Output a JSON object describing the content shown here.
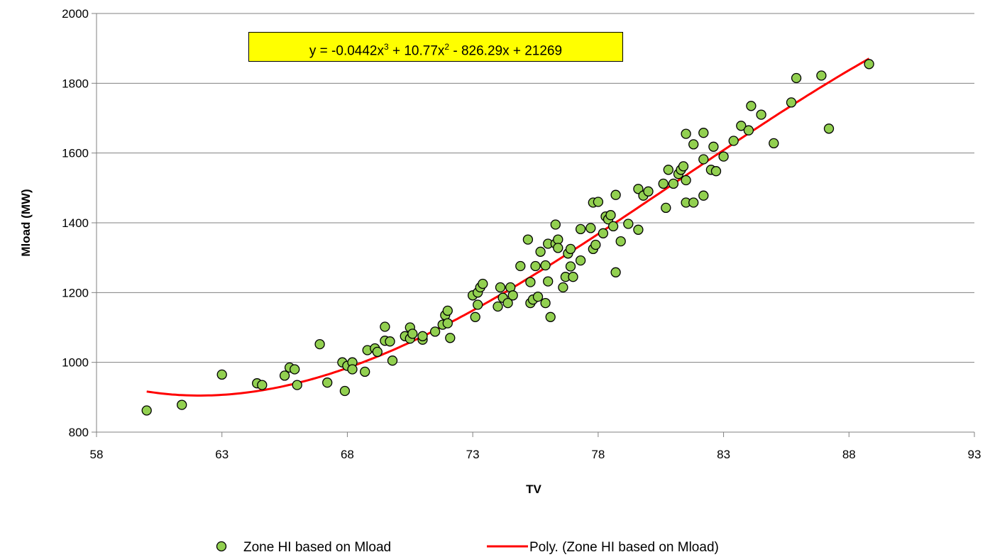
{
  "chart_data": {
    "type": "scatter",
    "xlabel": "TV",
    "ylabel": "Mload (MW)",
    "xlim": [
      58,
      93
    ],
    "ylim": [
      800,
      2000
    ],
    "x_ticks": [
      "58",
      "63",
      "68",
      "73",
      "78",
      "83",
      "88",
      "93"
    ],
    "y_ticks": [
      "800",
      "1000",
      "1200",
      "1400",
      "1600",
      "1800",
      "2000"
    ],
    "grid": "horizontal",
    "legend_placement": "bottom",
    "colors": {
      "marker_fill": "#92d050",
      "marker_edge": "#000000",
      "trendline": "#ff0000",
      "gridline": "#808080"
    },
    "annotation": {
      "prefix": "y = -0.0442x",
      "exp1": "3",
      "mid1": " + 10.77x",
      "exp2": "2",
      "suffix": " - 826.29x + 21269",
      "background": "#ffff00"
    },
    "trendline": {
      "name": "Poly. (Zone HI based on Mload)",
      "type": "polynomial",
      "coefficients": [
        -0.0442,
        10.77,
        -826.29,
        21269
      ],
      "x_range": [
        60,
        88.8
      ]
    },
    "series": [
      {
        "name": "Zone HI based on Mload",
        "points": [
          [
            60.0,
            862
          ],
          [
            61.4,
            878
          ],
          [
            63.0,
            965
          ],
          [
            64.4,
            940
          ],
          [
            64.6,
            935
          ],
          [
            65.5,
            962
          ],
          [
            65.7,
            985
          ],
          [
            65.9,
            980
          ],
          [
            66.0,
            935
          ],
          [
            66.9,
            1052
          ],
          [
            67.2,
            942
          ],
          [
            67.8,
            1000
          ],
          [
            67.9,
            918
          ],
          [
            68.0,
            990
          ],
          [
            68.2,
            1000
          ],
          [
            68.2,
            980
          ],
          [
            68.7,
            973
          ],
          [
            68.8,
            1035
          ],
          [
            69.1,
            1040
          ],
          [
            69.2,
            1030
          ],
          [
            69.5,
            1102
          ],
          [
            69.5,
            1062
          ],
          [
            69.7,
            1060
          ],
          [
            69.8,
            1005
          ],
          [
            70.3,
            1075
          ],
          [
            70.5,
            1100
          ],
          [
            70.5,
            1068
          ],
          [
            70.6,
            1082
          ],
          [
            71.0,
            1065
          ],
          [
            71.0,
            1075
          ],
          [
            71.5,
            1088
          ],
          [
            71.8,
            1108
          ],
          [
            71.9,
            1135
          ],
          [
            72.0,
            1148
          ],
          [
            72.0,
            1112
          ],
          [
            72.1,
            1070
          ],
          [
            73.0,
            1192
          ],
          [
            73.1,
            1130
          ],
          [
            73.2,
            1200
          ],
          [
            73.2,
            1165
          ],
          [
            73.3,
            1215
          ],
          [
            73.4,
            1225
          ],
          [
            74.0,
            1160
          ],
          [
            74.1,
            1215
          ],
          [
            74.2,
            1185
          ],
          [
            74.4,
            1170
          ],
          [
            74.5,
            1215
          ],
          [
            74.6,
            1192
          ],
          [
            74.9,
            1276
          ],
          [
            75.2,
            1352
          ],
          [
            75.3,
            1170
          ],
          [
            75.3,
            1230
          ],
          [
            75.4,
            1180
          ],
          [
            75.5,
            1276
          ],
          [
            75.6,
            1188
          ],
          [
            75.7,
            1317
          ],
          [
            75.9,
            1170
          ],
          [
            75.9,
            1278
          ],
          [
            76.0,
            1340
          ],
          [
            76.0,
            1232
          ],
          [
            76.1,
            1130
          ],
          [
            76.3,
            1395
          ],
          [
            76.3,
            1340
          ],
          [
            76.4,
            1352
          ],
          [
            76.4,
            1328
          ],
          [
            76.6,
            1215
          ],
          [
            76.7,
            1245
          ],
          [
            76.8,
            1312
          ],
          [
            76.9,
            1325
          ],
          [
            76.9,
            1275
          ],
          [
            77.0,
            1245
          ],
          [
            77.3,
            1292
          ],
          [
            77.3,
            1382
          ],
          [
            77.7,
            1385
          ],
          [
            77.8,
            1325
          ],
          [
            77.8,
            1458
          ],
          [
            77.9,
            1337
          ],
          [
            78.0,
            1460
          ],
          [
            78.2,
            1370
          ],
          [
            78.3,
            1418
          ],
          [
            78.4,
            1410
          ],
          [
            78.5,
            1422
          ],
          [
            78.6,
            1390
          ],
          [
            78.7,
            1258
          ],
          [
            78.7,
            1480
          ],
          [
            78.9,
            1347
          ],
          [
            79.2,
            1397
          ],
          [
            79.6,
            1380
          ],
          [
            79.6,
            1497
          ],
          [
            79.8,
            1478
          ],
          [
            80.0,
            1490
          ],
          [
            80.6,
            1512
          ],
          [
            80.7,
            1443
          ],
          [
            80.8,
            1552
          ],
          [
            81.0,
            1512
          ],
          [
            81.2,
            1540
          ],
          [
            81.3,
            1552
          ],
          [
            81.4,
            1562
          ],
          [
            81.5,
            1655
          ],
          [
            81.5,
            1458
          ],
          [
            81.5,
            1522
          ],
          [
            81.8,
            1625
          ],
          [
            81.8,
            1458
          ],
          [
            82.2,
            1582
          ],
          [
            82.2,
            1478
          ],
          [
            82.2,
            1658
          ],
          [
            82.5,
            1552
          ],
          [
            82.6,
            1618
          ],
          [
            82.7,
            1548
          ],
          [
            83.0,
            1590
          ],
          [
            83.4,
            1635
          ],
          [
            83.7,
            1678
          ],
          [
            84.0,
            1665
          ],
          [
            84.1,
            1735
          ],
          [
            84.5,
            1710
          ],
          [
            85.0,
            1628
          ],
          [
            85.7,
            1745
          ],
          [
            85.9,
            1815
          ],
          [
            86.9,
            1822
          ],
          [
            87.2,
            1670
          ],
          [
            88.8,
            1855
          ]
        ]
      }
    ]
  }
}
